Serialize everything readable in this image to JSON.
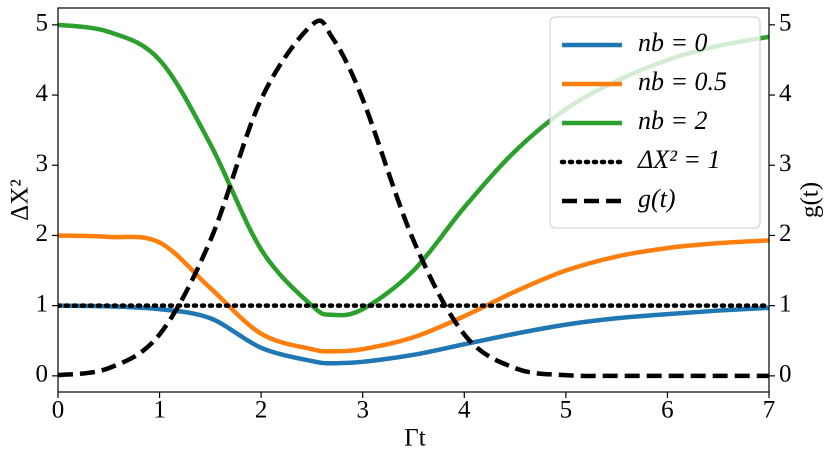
{
  "chart_data": {
    "type": "line",
    "x_label": "Γt",
    "y_label": "ΔX²",
    "y2_label": "g(t)",
    "x": [
      0,
      0.5,
      1,
      1.5,
      2,
      2.5,
      2.7,
      3,
      3.5,
      4,
      4.5,
      5,
      5.5,
      6,
      6.5,
      7
    ],
    "series": [
      {
        "name": "nb = 0",
        "color": "#1f77b4",
        "style": "solid",
        "values": [
          1.0,
          0.99,
          0.95,
          0.82,
          0.4,
          0.21,
          0.18,
          0.2,
          0.3,
          0.45,
          0.6,
          0.73,
          0.82,
          0.88,
          0.93,
          0.97
        ]
      },
      {
        "name": "nb = 0.5",
        "color": "#ff7f0e",
        "style": "solid",
        "values": [
          2.0,
          1.98,
          1.9,
          1.25,
          0.6,
          0.38,
          0.35,
          0.38,
          0.55,
          0.85,
          1.2,
          1.5,
          1.7,
          1.82,
          1.89,
          1.93
        ]
      },
      {
        "name": "nb = 2",
        "color": "#2ca02c",
        "style": "solid",
        "values": [
          5.0,
          4.9,
          4.5,
          3.3,
          1.8,
          1.0,
          0.87,
          0.95,
          1.5,
          2.4,
          3.2,
          3.8,
          4.2,
          4.5,
          4.7,
          4.83
        ]
      },
      {
        "name": "ΔX² = 1",
        "color": "#000000",
        "style": "dotted",
        "values": [
          1,
          1,
          1,
          1,
          1,
          1,
          1,
          1,
          1,
          1,
          1,
          1,
          1,
          1,
          1,
          1
        ]
      },
      {
        "name": "g(t)",
        "color": "#000000",
        "style": "dashed",
        "axis": "y2",
        "values": [
          0.01,
          0.11,
          0.59,
          1.93,
          3.94,
          5.0,
          4.82,
          3.94,
          1.93,
          0.59,
          0.11,
          0.01,
          0,
          0,
          0,
          0
        ]
      }
    ],
    "xlim": [
      0,
      7
    ],
    "xticks": [
      0,
      1,
      2,
      3,
      4,
      5,
      6,
      7
    ],
    "ylim": [
      -0.23,
      5.24
    ],
    "yticks": [
      0,
      1,
      2,
      3,
      4,
      5
    ],
    "y2lim": [
      -0.23,
      5.24
    ],
    "y2ticks": [
      0,
      1,
      2,
      3,
      4,
      5
    ],
    "legend": "upper right"
  }
}
